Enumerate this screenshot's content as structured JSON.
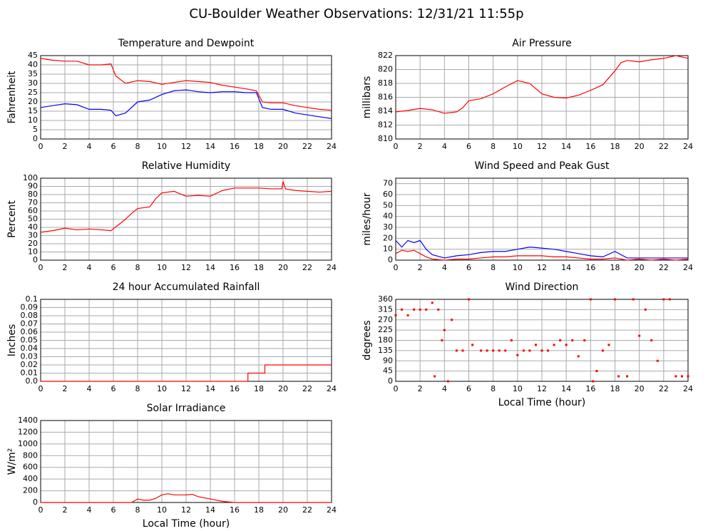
{
  "page_title": "CU-Boulder Weather Observations: 12/31/21 11:55p",
  "chart_data": [
    {
      "type": "line",
      "title": "Temperature and Dewpoint",
      "ylabel": "Fahrenheit",
      "x": [
        0,
        1,
        2,
        3,
        4,
        5,
        5.8,
        6.2,
        7,
        8,
        9,
        10,
        11,
        12,
        13,
        14,
        15,
        16,
        17,
        17.8,
        18.3,
        19,
        20,
        21,
        22,
        23,
        24
      ],
      "series": [
        {
          "name": "Temperature",
          "color": "#ff0000",
          "values": [
            43.5,
            42.5,
            42,
            42,
            40,
            40,
            40.5,
            34,
            30,
            31.5,
            31,
            29.5,
            30.5,
            31.5,
            31,
            30.5,
            29,
            28,
            27,
            26,
            20,
            19.5,
            19.5,
            18,
            17,
            16,
            15.5
          ]
        },
        {
          "name": "Dewpoint",
          "color": "#0000ff",
          "values": [
            17,
            18,
            19,
            18.5,
            16,
            16,
            15.5,
            12.5,
            14,
            20,
            21,
            24,
            26,
            26.5,
            25.5,
            25,
            25.5,
            25.5,
            25,
            25,
            17,
            16,
            16,
            14,
            13,
            12,
            11
          ]
        }
      ],
      "xlim": [
        0,
        24
      ],
      "xticks": [
        0,
        2,
        4,
        6,
        8,
        10,
        12,
        14,
        16,
        18,
        20,
        22,
        24
      ],
      "ylim": [
        0,
        45
      ],
      "yticks": [
        0,
        5,
        10,
        15,
        20,
        25,
        30,
        35,
        40,
        45
      ],
      "grid": true
    },
    {
      "type": "line",
      "title": "Air Pressure",
      "ylabel": "millibars",
      "x": [
        0,
        1,
        2,
        3,
        4,
        5,
        5.5,
        6,
        7,
        8,
        9,
        10,
        11,
        12,
        13,
        14,
        15,
        16,
        17,
        18,
        18.5,
        19,
        20,
        21,
        22,
        23,
        24
      ],
      "series": [
        {
          "name": "Pressure",
          "color": "#ff0000",
          "values": [
            813.9,
            814.1,
            814.4,
            814.2,
            813.7,
            813.9,
            814.5,
            815.5,
            815.8,
            816.5,
            817.5,
            818.4,
            818,
            816.5,
            816,
            815.9,
            816.3,
            817,
            817.8,
            819.8,
            821,
            821.3,
            821.1,
            821.4,
            821.6,
            822,
            821.6
          ]
        }
      ],
      "xlim": [
        0,
        24
      ],
      "xticks": [
        0,
        2,
        4,
        6,
        8,
        10,
        12,
        14,
        16,
        18,
        20,
        22,
        24
      ],
      "ylim": [
        810,
        822
      ],
      "yticks": [
        810,
        812,
        814,
        816,
        818,
        820,
        822
      ],
      "grid": true
    },
    {
      "type": "line",
      "title": "Relative Humidity",
      "ylabel": "Percent",
      "x": [
        0,
        1,
        2,
        3,
        4,
        5,
        5.8,
        6.5,
        7,
        7.5,
        8,
        9,
        9.5,
        10,
        11,
        12,
        13,
        14,
        15,
        16,
        17,
        18,
        19,
        19.9,
        20,
        20.2,
        21,
        22,
        23,
        24
      ],
      "series": [
        {
          "name": "Humidity",
          "color": "#ff0000",
          "values": [
            34,
            36,
            39,
            37,
            38,
            37,
            36,
            44,
            50,
            57,
            63,
            65,
            75,
            82,
            84,
            78,
            79,
            78,
            85,
            88,
            88,
            88,
            87,
            87,
            96,
            87,
            85,
            84,
            83,
            84
          ]
        }
      ],
      "xlim": [
        0,
        24
      ],
      "xticks": [
        0,
        2,
        4,
        6,
        8,
        10,
        12,
        14,
        16,
        18,
        20,
        22,
        24
      ],
      "ylim": [
        0,
        100
      ],
      "yticks": [
        0,
        10,
        20,
        30,
        40,
        50,
        60,
        70,
        80,
        90,
        100
      ],
      "grid": true
    },
    {
      "type": "line",
      "title": "Wind Speed and Peak Gust",
      "ylabel": "miles/hour",
      "x": [
        0,
        0.5,
        1,
        1.5,
        2,
        2.5,
        3,
        4,
        5,
        6,
        7,
        8,
        9,
        10,
        11,
        12,
        13,
        14,
        15,
        16,
        17,
        18,
        19,
        20,
        21,
        22,
        23,
        24
      ],
      "series": [
        {
          "name": "Peak Gust",
          "color": "#0000ff",
          "values": [
            18,
            12,
            18,
            16,
            18,
            10,
            5,
            2,
            4,
            5,
            7,
            8,
            8,
            10,
            12,
            11,
            10,
            8,
            6,
            4,
            3,
            8,
            2,
            2,
            2,
            2,
            2,
            2
          ]
        },
        {
          "name": "Wind Speed",
          "color": "#ff0000",
          "values": [
            6,
            9,
            8,
            9,
            6,
            3,
            1,
            0,
            1,
            1,
            2,
            3,
            3,
            4,
            4,
            4,
            3,
            3,
            2,
            1,
            1,
            2,
            0,
            1,
            0,
            1,
            0,
            1
          ]
        }
      ],
      "xlim": [
        0,
        24
      ],
      "xticks": [
        0,
        2,
        4,
        6,
        8,
        10,
        12,
        14,
        16,
        18,
        20,
        22,
        24
      ],
      "ylim": [
        0,
        75
      ],
      "yticks": [
        0,
        10,
        20,
        30,
        40,
        50,
        60,
        70
      ],
      "grid": true
    },
    {
      "type": "line",
      "title": "24 hour Accumulated Rainfall",
      "ylabel": "Inches",
      "x": [
        0,
        17.1,
        17.1,
        18.5,
        18.5,
        24
      ],
      "series": [
        {
          "name": "Rainfall",
          "color": "#ff0000",
          "values": [
            0,
            0,
            0.01,
            0.01,
            0.02,
            0.02
          ]
        }
      ],
      "xlim": [
        0,
        24
      ],
      "xticks": [
        0,
        2,
        4,
        6,
        8,
        10,
        12,
        14,
        16,
        18,
        20,
        22,
        24
      ],
      "ylim": [
        0,
        0.1
      ],
      "yticks": [
        {
          "value": 0,
          "label": "0.0"
        },
        0.01,
        0.02,
        0.03,
        0.04,
        0.05,
        0.06,
        0.07,
        0.08,
        0.09,
        0.1
      ],
      "grid": true
    },
    {
      "type": "scatter",
      "title": "Wind Direction",
      "ylabel": "degrees",
      "xlabel": "Local Time (hour)",
      "x": [
        0,
        0.5,
        1,
        1.5,
        2,
        2.5,
        3,
        3.2,
        3.5,
        3.8,
        4,
        4.3,
        4.6,
        5,
        5.5,
        6,
        6.3,
        7,
        7.5,
        8,
        8.5,
        9,
        9.5,
        10,
        10.5,
        11,
        11.5,
        12,
        12.5,
        13,
        13.5,
        14,
        14.5,
        15,
        15.5,
        16,
        16.2,
        16.5,
        17,
        17.5,
        18,
        18.3,
        19,
        19.5,
        20,
        20.5,
        21,
        21.5,
        22,
        22.5,
        23,
        23.5,
        24
      ],
      "series": [
        {
          "name": "Direction",
          "color": "#ff0000",
          "values": [
            290,
            315,
            290,
            315,
            315,
            315,
            345,
            22,
            315,
            180,
            225,
            0,
            270,
            135,
            135,
            360,
            160,
            135,
            135,
            135,
            135,
            135,
            180,
            115,
            135,
            135,
            160,
            135,
            135,
            160,
            180,
            160,
            180,
            110,
            180,
            360,
            0,
            45,
            135,
            160,
            360,
            22,
            22,
            360,
            200,
            315,
            180,
            90,
            360,
            360,
            22,
            22,
            22
          ]
        }
      ],
      "xlim": [
        0,
        24
      ],
      "xticks": [
        0,
        2,
        4,
        6,
        8,
        10,
        12,
        14,
        16,
        18,
        20,
        22,
        24
      ],
      "ylim": [
        0,
        360
      ],
      "yticks": [
        0,
        45,
        90,
        135,
        180,
        225,
        270,
        315,
        360
      ],
      "grid": true
    },
    {
      "type": "line",
      "title": "Solar Irradiance",
      "ylabel": "W/m²",
      "xlabel": "Local Time (hour)",
      "x": [
        0,
        7.5,
        8,
        8.5,
        9,
        9.5,
        10,
        10.5,
        11,
        12,
        12.5,
        13,
        14,
        15,
        16,
        17,
        24
      ],
      "series": [
        {
          "name": "Irradiance",
          "color": "#ff0000",
          "values": [
            0,
            0,
            60,
            40,
            40,
            70,
            130,
            150,
            130,
            130,
            140,
            100,
            60,
            20,
            0,
            0,
            0
          ]
        }
      ],
      "xlim": [
        0,
        24
      ],
      "xticks": [
        0,
        2,
        4,
        6,
        8,
        10,
        12,
        14,
        16,
        18,
        20,
        22,
        24
      ],
      "ylim": [
        0,
        1400
      ],
      "yticks": [
        0,
        200,
        400,
        600,
        800,
        1000,
        1200,
        1400
      ],
      "grid": true
    }
  ]
}
